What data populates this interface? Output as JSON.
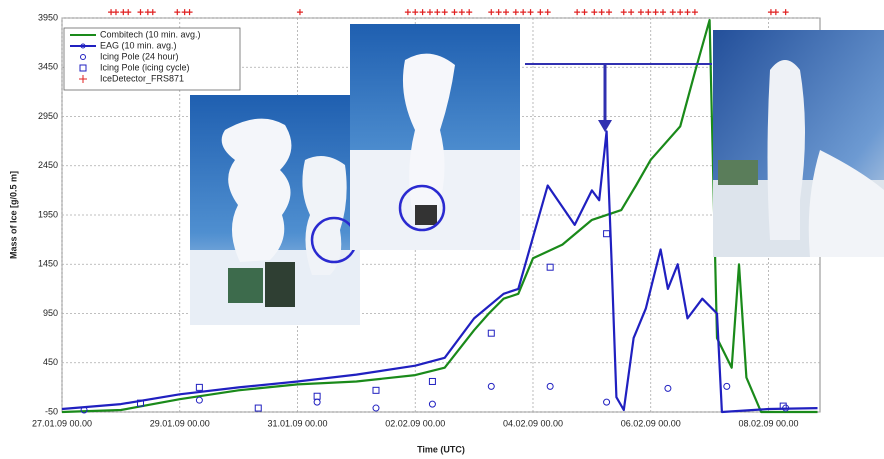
{
  "chart_data": {
    "type": "line",
    "xlabel": "Time (UTC)",
    "ylabel": "Mass of Ice [g/0.5 m]",
    "xlim": [
      "27.01.09 00.00",
      "08.02.09 21.00"
    ],
    "xticks": [
      "27.01.09 00.00",
      "29.01.09 00.00",
      "31.01.09 00.00",
      "02.02.09 00.00",
      "04.02.09 00.00",
      "06.02.09 00.00",
      "08.02.09 00.00"
    ],
    "ylim": [
      -50,
      3950
    ],
    "yticks": [
      -50,
      450,
      950,
      1450,
      1950,
      2450,
      2950,
      3450,
      3950
    ],
    "grid": true,
    "legend": "upper left",
    "series": [
      {
        "name": "Combitech (10 min. avg.)",
        "color": "#1a8a1a",
        "style": "line",
        "x": [
          "27.01.09 00.00",
          "28.01.09 00.00",
          "29.01.09 00.00",
          "30.01.09 00.00",
          "31.01.09 00.00",
          "01.02.09 00.00",
          "02.02.09 00.00",
          "02.02.09 12.00",
          "03.02.09 00.00",
          "03.02.09 06.00",
          "03.02.09 12.00",
          "03.02.09 18.00",
          "04.02.09 00.00",
          "04.02.09 12.00",
          "05.02.09 00.00",
          "05.02.09 12.00",
          "05.02.09 18.00",
          "06.02.09 00.00",
          "06.02.09 12.00",
          "06.02.09 18.00",
          "07.02.09 00.00",
          "07.02.09 03.00",
          "07.02.09 09.00",
          "07.02.09 12.00",
          "07.02.09 15.00",
          "07.02.09 21.00",
          "08.02.09 00.00",
          "08.02.09 20.00"
        ],
        "values": [
          -50,
          -30,
          80,
          170,
          230,
          260,
          325,
          400,
          780,
          950,
          1100,
          1150,
          1510,
          1650,
          1900,
          2000,
          2250,
          2510,
          2850,
          3400,
          3930,
          700,
          400,
          1450,
          300,
          -50,
          -50,
          -50
        ]
      },
      {
        "name": "EAG (10 min. avg.)",
        "color": "#2020c0",
        "style": "line",
        "x": [
          "27.01.09 00.00",
          "28.01.09 00.00",
          "29.01.09 00.00",
          "30.01.09 00.00",
          "31.01.09 00.00",
          "01.02.09 00.00",
          "02.02.09 00.00",
          "02.02.09 12.00",
          "03.02.09 00.00",
          "03.02.09 12.00",
          "03.02.09 18.00",
          "04.02.09 06.00",
          "04.02.09 17.00",
          "05.02.09 00.00",
          "05.02.09 03.00",
          "05.02.09 06.00",
          "05.02.09 08.00",
          "05.02.09 10.00",
          "05.02.09 13.00",
          "05.02.09 17.00",
          "05.02.09 22.00",
          "06.02.09 04.00",
          "06.02.09 07.00",
          "06.02.09 11.00",
          "06.02.09 15.00",
          "06.02.09 21.00",
          "07.02.09 03.00",
          "07.02.09 05.00",
          "08.02.09 00.00",
          "08.02.09 20.00"
        ],
        "values": [
          -20,
          30,
          130,
          200,
          260,
          330,
          420,
          500,
          900,
          1150,
          1200,
          2250,
          1850,
          2200,
          2100,
          2800,
          1500,
          100,
          -30,
          700,
          1000,
          1600,
          1200,
          1450,
          900,
          1100,
          950,
          -50,
          -20,
          -10
        ]
      },
      {
        "name": "Icing Pole (24 hour)",
        "color": "#2020c0",
        "style": "circle",
        "x": [
          "27.01.09 09.00",
          "29.01.09 08.00",
          "31.01.09 08.00",
          "01.02.09 08.00",
          "02.02.09 07.00",
          "03.02.09 07.00",
          "04.02.09 07.00",
          "05.02.09 06.00",
          "06.02.09 07.00",
          "07.02.09 07.00",
          "08.02.09 07.00"
        ],
        "values": [
          -30,
          70,
          50,
          -10,
          30,
          210,
          210,
          50,
          190,
          210,
          -10
        ]
      },
      {
        "name": "Icing Pole (icing cycle)",
        "color": "#2020c0",
        "style": "square",
        "x": [
          "28.01.09 08.00",
          "29.01.09 08.00",
          "30.01.09 08.00",
          "31.01.09 08.00",
          "01.02.09 08.00",
          "02.02.09 07.00",
          "03.02.09 07.00",
          "04.02.09 07.00",
          "05.02.09 06.00",
          "08.02.09 06.00"
        ],
        "values": [
          40,
          200,
          -10,
          110,
          170,
          260,
          750,
          1420,
          1760,
          10
        ]
      },
      {
        "name": "IceDetector_FRS871",
        "color": "#e02020",
        "style": "plus",
        "x": [
          "27.01.09 20.00",
          "27.01.09 22.00",
          "28.01.09 01.00",
          "28.01.09 03.00",
          "28.01.09 08.00",
          "28.01.09 11.00",
          "28.01.09 13.00",
          "28.01.09 23.00",
          "29.01.09 02.00",
          "29.01.09 04.00",
          "31.01.09 01.00",
          "01.02.09 21.00",
          "02.02.09 00.00",
          "02.02.09 03.00",
          "02.02.09 06.00",
          "02.02.09 09.00",
          "02.02.09 12.00",
          "02.02.09 16.00",
          "02.02.09 19.00",
          "02.02.09 22.00",
          "03.02.09 07.00",
          "03.02.09 10.00",
          "03.02.09 13.00",
          "03.02.09 17.00",
          "03.02.09 20.00",
          "03.02.09 23.00",
          "04.02.09 03.00",
          "04.02.09 06.00",
          "04.02.09 18.00",
          "04.02.09 21.00",
          "05.02.09 01.00",
          "05.02.09 04.00",
          "05.02.09 07.00",
          "05.02.09 13.00",
          "05.02.09 16.00",
          "05.02.09 20.00",
          "05.02.09 23.00",
          "06.02.09 02.00",
          "06.02.09 05.00",
          "06.02.09 09.00",
          "06.02.09 12.00",
          "06.02.09 15.00",
          "06.02.09 18.00",
          "08.02.09 01.00",
          "08.02.09 03.00",
          "08.02.09 07.00"
        ],
        "values": [
          4010,
          4010,
          4010,
          4010,
          4010,
          4010,
          4010,
          4010,
          4010,
          4010,
          4010,
          4010,
          4010,
          4010,
          4010,
          4010,
          4010,
          4010,
          4010,
          4010,
          4010,
          4010,
          4010,
          4010,
          4010,
          4010,
          4010,
          4010,
          4010,
          4010,
          4010,
          4010,
          4010,
          4010,
          4010,
          4010,
          4010,
          4010,
          4010,
          4010,
          4010,
          4010,
          4010,
          4010,
          4010,
          4010
        ]
      }
    ]
  }
}
